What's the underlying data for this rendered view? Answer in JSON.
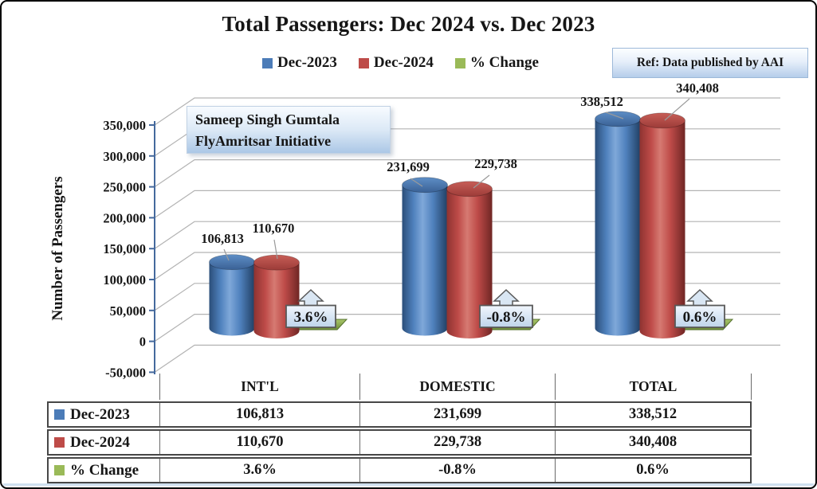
{
  "title": "Total Passengers: Dec 2024 vs. Dec 2023",
  "ref_note": "Ref: Data published by AAI",
  "watermark": {
    "line1": "Sameep Singh Gumtala",
    "line2": "FlyAmritsar Initiative"
  },
  "legend": {
    "items": [
      {
        "label": "Dec-2023",
        "color": "#4c7cb8"
      },
      {
        "label": "Dec-2024",
        "color": "#be4b48"
      },
      {
        "label": "% Change",
        "color": "#9aba58"
      }
    ]
  },
  "chart_data": {
    "type": "bar",
    "subtype": "3d-cylinder",
    "title": "Total Passengers: Dec 2024 vs. Dec 2023",
    "categories": [
      "INT'L",
      "DOMESTIC",
      "TOTAL"
    ],
    "series": [
      {
        "name": "Dec-2023",
        "color": "#4c7cb8",
        "values": [
          106813,
          231699,
          338512
        ],
        "labels": [
          "106,813",
          "231,699",
          "338,512"
        ]
      },
      {
        "name": "Dec-2024",
        "color": "#be4b48",
        "values": [
          110670,
          229738,
          340408
        ],
        "labels": [
          "110,670",
          "229,738",
          "340,408"
        ]
      },
      {
        "name": "% Change",
        "color": "#9aba58",
        "values": [
          3.6,
          -0.8,
          0.6
        ],
        "labels": [
          "3.6%",
          "-0.8%",
          "0.6%"
        ]
      }
    ],
    "ylabel": "Number of Passengers",
    "xlabel": "",
    "ylim": [
      -50000,
      350000
    ],
    "yticks": [
      "350,000",
      "300,000",
      "250,000",
      "200,000",
      "150,000",
      "100,000",
      "50,000",
      "0",
      "-50,000"
    ],
    "grid": true,
    "legend_position": "top"
  },
  "table": {
    "header": [
      "",
      "INT'L",
      "DOMESTIC",
      "TOTAL"
    ],
    "rows": [
      {
        "label": "Dec-2023",
        "color": "#4c7cb8",
        "cells": [
          "106,813",
          "231,699",
          "338,512"
        ]
      },
      {
        "label": "Dec-2024",
        "color": "#be4b48",
        "cells": [
          "110,670",
          "229,738",
          "340,408"
        ]
      },
      {
        "label": "% Change",
        "color": "#9aba58",
        "cells": [
          "3.6%",
          "-0.8%",
          "0.6%"
        ]
      }
    ]
  }
}
